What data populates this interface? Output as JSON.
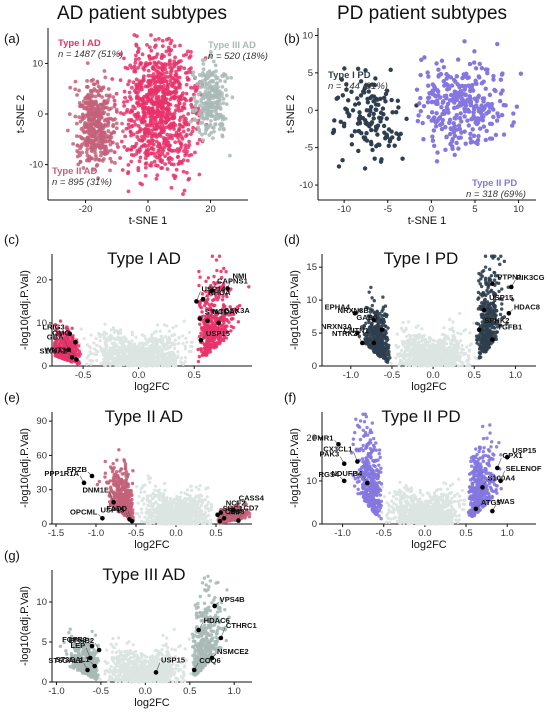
{
  "figure": {
    "panel_a": {
      "letter": "(a)",
      "title": "AD patient subtypes"
    },
    "panel_b": {
      "letter": "(b)",
      "title": "PD patient subtypes"
    },
    "panel_c": {
      "letter": "(c)"
    },
    "panel_d": {
      "letter": "(d)"
    },
    "panel_e": {
      "letter": "(e)"
    },
    "panel_f": {
      "letter": "(f)"
    },
    "panel_g": {
      "letter": "(g)"
    }
  },
  "colors": {
    "type1_ad": "#E8336A",
    "type2_ad": "#C4607A",
    "type3_ad": "#A9BAB6",
    "type1_pd": "#2E3F4F",
    "type2_pd": "#8477DF",
    "nonsig": "#DCE5E2",
    "highlight": "#000000"
  },
  "chart_data": [
    {
      "id": "a",
      "type": "scatter",
      "xlabel": "t-SNE 1",
      "ylabel": "t-SNE 2",
      "xlim": [
        -32,
        32
      ],
      "ylim": [
        -17,
        17
      ],
      "xticks": [
        -20,
        0,
        20
      ],
      "yticks": [
        -10,
        0,
        10
      ],
      "series": [
        {
          "name": "Type I AD",
          "n_label": "n = 1487 (51%)",
          "color": "#E8336A"
        },
        {
          "name": "Type II AD",
          "n_label": "n = 895 (31%)",
          "color": "#C4607A"
        },
        {
          "name": "Type III AD",
          "n_label": "n = 520 (18%)",
          "color": "#A9BAB6"
        }
      ]
    },
    {
      "id": "b",
      "type": "scatter",
      "xlabel": "t-SNE 1",
      "ylabel": "t-SNE 2",
      "xlim": [
        -13,
        12
      ],
      "ylim": [
        -12,
        11
      ],
      "xticks": [
        -10,
        -5,
        0,
        5,
        10
      ],
      "yticks": [
        -10,
        -5,
        0,
        5,
        10
      ],
      "series": [
        {
          "name": "Type I PD",
          "n_label": "n = 144 (31%)",
          "color": "#2E3F4F"
        },
        {
          "name": "Type II PD",
          "n_label": "n = 318 (69%)",
          "color": "#8477DF"
        }
      ]
    },
    {
      "id": "c",
      "type": "scatter",
      "title": "Type I AD",
      "xlabel": "log2FC",
      "ylabel": "-log10(adj.P.Val)",
      "xlim": [
        -0.78,
        1.02
      ],
      "ylim": [
        0,
        26
      ],
      "xticks": [
        -0.5,
        0.0,
        0.5
      ],
      "yticks": [
        0,
        10,
        20
      ],
      "color": "#E8336A",
      "genes": [
        {
          "name": "LRIG3",
          "x": -0.62,
          "y": 7.5
        },
        {
          "name": "OMG",
          "x": -0.57,
          "y": 5.5
        },
        {
          "name": "GBA",
          "x": -0.63,
          "y": 3.8
        },
        {
          "name": "S100A2",
          "x": -0.6,
          "y": 2.0
        },
        {
          "name": "WNT3A",
          "x": -0.56,
          "y": 1.5
        },
        {
          "name": "USP14",
          "x": 0.52,
          "y": 15.0
        },
        {
          "name": "RHOA",
          "x": 0.58,
          "y": 15.5
        },
        {
          "name": "CAPNS1",
          "x": 0.66,
          "y": 17.5
        },
        {
          "name": "NMI",
          "x": 0.8,
          "y": 18.0
        },
        {
          "name": "STAT1",
          "x": 0.55,
          "y": 11.0
        },
        {
          "name": "NCOA7",
          "x": 0.62,
          "y": 10.5
        },
        {
          "name": "GSK3A",
          "x": 0.72,
          "y": 10.0
        },
        {
          "name": "USP15",
          "x": 0.56,
          "y": 6.0
        }
      ]
    },
    {
      "id": "d",
      "type": "scatter",
      "title": "Type I PD",
      "xlabel": "log2FC",
      "ylabel": "-log10(adj.P.Val)",
      "xlim": [
        -1.35,
        1.25
      ],
      "ylim": [
        0,
        17
      ],
      "xticks": [
        -1.0,
        -0.5,
        0.0,
        0.5,
        1.0
      ],
      "yticks": [
        0,
        5,
        10,
        15
      ],
      "color": "#2E3F4F",
      "genes": [
        {
          "name": "EPHA4",
          "x": -0.95,
          "y": 8.0
        },
        {
          "name": "NRXN3B",
          "x": -0.72,
          "y": 7.0
        },
        {
          "name": "GAS6",
          "x": -0.62,
          "y": 5.5
        },
        {
          "name": "NRXN3A",
          "x": -0.92,
          "y": 5.0
        },
        {
          "name": "NTRK2",
          "x": -0.86,
          "y": 3.5
        },
        {
          "name": "CNTN1",
          "x": -0.72,
          "y": 3.5
        },
        {
          "name": "PTPN1",
          "x": 0.72,
          "y": 12.5
        },
        {
          "name": "PIK3CG",
          "x": 0.95,
          "y": 12.0
        },
        {
          "name": "USP15",
          "x": 0.62,
          "y": 8.5
        },
        {
          "name": "HDAC8",
          "x": 0.92,
          "y": 8.0
        },
        {
          "name": "SPHK2",
          "x": 0.56,
          "y": 5.5
        },
        {
          "name": "TGFB1",
          "x": 0.72,
          "y": 4.0
        }
      ]
    },
    {
      "id": "e",
      "type": "scatter",
      "title": "Type II AD",
      "xlabel": "log2FC",
      "ylabel": "-log10(adj.P.Val)",
      "xlim": [
        -1.55,
        0.95
      ],
      "ylim": [
        0,
        98
      ],
      "xticks": [
        -1.5,
        -1.0,
        -0.5,
        0.0,
        0.5
      ],
      "yticks": [
        0,
        30,
        60,
        90
      ],
      "color": "#C4607A",
      "genes": [
        {
          "name": "FRZB",
          "x": -1.05,
          "y": 42
        },
        {
          "name": "PPP1R1A",
          "x": -1.15,
          "y": 36
        },
        {
          "name": "DNM1L",
          "x": -0.78,
          "y": 19
        },
        {
          "name": "OPCML",
          "x": -0.92,
          "y": 5
        },
        {
          "name": "USP15",
          "x": -0.58,
          "y": 4
        },
        {
          "name": "FADD",
          "x": -0.55,
          "y": 2.5
        },
        {
          "name": "SHC1",
          "x": 0.52,
          "y": 8
        },
        {
          "name": "NCF2",
          "x": 0.56,
          "y": 10
        },
        {
          "name": "CASS4",
          "x": 0.72,
          "y": 12
        },
        {
          "name": "MIF",
          "x": 0.6,
          "y": 5
        },
        {
          "name": "CD68",
          "x": 0.55,
          "y": 2.5
        },
        {
          "name": "CD7",
          "x": 0.78,
          "y": 3
        }
      ]
    },
    {
      "id": "f",
      "type": "scatter",
      "title": "Type II PD",
      "xlabel": "log2FC",
      "ylabel": "-log10(adj.P.Val)",
      "xlim": [
        -1.25,
        1.35
      ],
      "ylim": [
        0,
        26
      ],
      "xticks": [
        -1.0,
        -0.5,
        0.0,
        0.5,
        1.0
      ],
      "yticks": [
        0,
        10,
        20
      ],
      "color": "#8477DF",
      "genes": [
        {
          "name": "FMR1",
          "x": -1.05,
          "y": 18.5
        },
        {
          "name": "PAK3",
          "x": -0.98,
          "y": 14.0
        },
        {
          "name": "CX3CL1",
          "x": -0.82,
          "y": 14.5
        },
        {
          "name": "RGS4",
          "x": -0.98,
          "y": 10.0
        },
        {
          "name": "NDUFB4",
          "x": -0.7,
          "y": 9.5
        },
        {
          "name": "GPX1",
          "x": 0.88,
          "y": 13.0
        },
        {
          "name": "USP15",
          "x": 1.0,
          "y": 15.5
        },
        {
          "name": "S100A4",
          "x": 0.7,
          "y": 8.5
        },
        {
          "name": "SELENOF",
          "x": 0.92,
          "y": 10.0
        },
        {
          "name": "ATG5",
          "x": 0.62,
          "y": 3.5
        },
        {
          "name": "WAS",
          "x": 0.82,
          "y": 3.0
        }
      ]
    },
    {
      "id": "g",
      "type": "scatter",
      "title": "Type III AD",
      "xlabel": "log2FC",
      "ylabel": "-log10(adj.P.Val)",
      "xlim": [
        -1.05,
        1.2
      ],
      "ylim": [
        0,
        14
      ],
      "xticks": [
        -1.0,
        -0.5,
        0.0,
        0.5,
        1.0
      ],
      "yticks": [
        0,
        5,
        10
      ],
      "color": "#A9BAB6",
      "genes": [
        {
          "name": "FGFR3",
          "x": -0.6,
          "y": 4.5
        },
        {
          "name": "EPHB2",
          "x": -0.52,
          "y": 4.0
        },
        {
          "name": "LEP",
          "x": -0.62,
          "y": 3.0
        },
        {
          "name": "ST3GAL1",
          "x": -0.57,
          "y": 2.0
        },
        {
          "name": "ST6GAL2",
          "x": -0.65,
          "y": 1.5
        },
        {
          "name": "USP15",
          "x": 0.12,
          "y": 1.2
        },
        {
          "name": "VPS4B",
          "x": 0.78,
          "y": 9.5
        },
        {
          "name": "HDAC6",
          "x": 0.6,
          "y": 6.5
        },
        {
          "name": "CTHRC1",
          "x": 0.85,
          "y": 5.5
        },
        {
          "name": "NSMCE2",
          "x": 0.75,
          "y": 3.0
        },
        {
          "name": "COQ6",
          "x": 0.55,
          "y": 1.5
        }
      ]
    }
  ]
}
